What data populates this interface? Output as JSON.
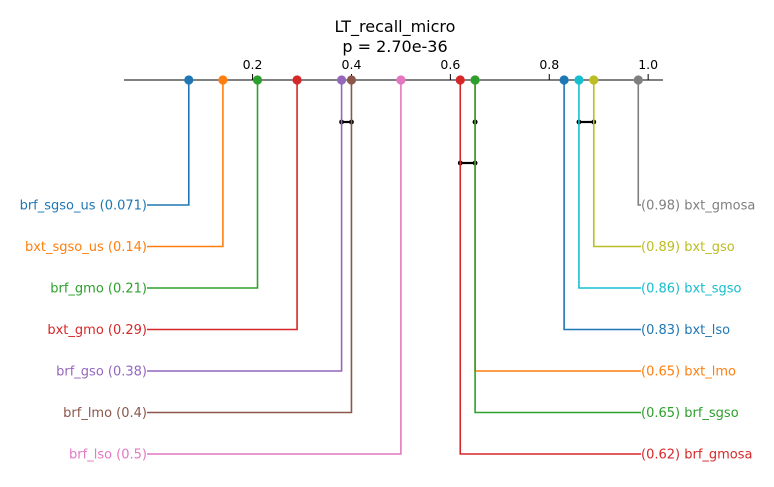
{
  "chart_data": {
    "type": "critical-difference-diagram",
    "title": "LT_recall_micro",
    "subtitle": "p = 2.70e-36",
    "xlim": [
      -0.06,
      1.03
    ],
    "ticks": [
      {
        "value": 0.2,
        "label": "0.2"
      },
      {
        "value": 0.4,
        "label": "0.4"
      },
      {
        "value": 0.6,
        "label": "0.6"
      },
      {
        "value": 0.8,
        "label": "0.8"
      },
      {
        "value": 1.0,
        "label": "1.0"
      }
    ],
    "entries": [
      {
        "name": "brf_sgso_us",
        "value": 0.071,
        "label": "brf_sgso_us (0.071)",
        "side": "left",
        "color": "#1f77b4"
      },
      {
        "name": "bxt_sgso_us",
        "value": 0.14,
        "label": "bxt_sgso_us (0.14)",
        "side": "left",
        "color": "#ff7f0e"
      },
      {
        "name": "brf_gmo",
        "value": 0.21,
        "label": "brf_gmo (0.21)",
        "side": "left",
        "color": "#2ca02c"
      },
      {
        "name": "bxt_gmo",
        "value": 0.29,
        "label": "bxt_gmo (0.29)",
        "side": "left",
        "color": "#d62728"
      },
      {
        "name": "brf_gso",
        "value": 0.38,
        "label": "brf_gso (0.38)",
        "side": "left",
        "color": "#9467bd"
      },
      {
        "name": "brf_lmo",
        "value": 0.4,
        "label": "brf_lmo (0.4)",
        "side": "left",
        "color": "#8c564b"
      },
      {
        "name": "brf_lso",
        "value": 0.5,
        "label": "brf_lso (0.5)",
        "side": "left",
        "color": "#e377c2"
      },
      {
        "name": "bxt_gmosa",
        "value": 0.98,
        "label": "(0.98) bxt_gmosa",
        "side": "right",
        "color": "#7f7f7f"
      },
      {
        "name": "bxt_gso",
        "value": 0.89,
        "label": "(0.89) bxt_gso",
        "side": "right",
        "color": "#bcbd22"
      },
      {
        "name": "bxt_sgso",
        "value": 0.86,
        "label": "(0.86) bxt_sgso",
        "side": "right",
        "color": "#17becf"
      },
      {
        "name": "bxt_lso",
        "value": 0.83,
        "label": "(0.83) bxt_lso",
        "side": "right",
        "color": "#1f77b4"
      },
      {
        "name": "bxt_lmo",
        "value": 0.65,
        "label": "(0.65) bxt_lmo",
        "side": "right",
        "color": "#ff7f0e"
      },
      {
        "name": "brf_sgso",
        "value": 0.65,
        "label": "(0.65) brf_sgso",
        "side": "right",
        "color": "#2ca02c"
      },
      {
        "name": "brf_gmosa",
        "value": 0.62,
        "label": "(0.62) brf_gmosa",
        "side": "right",
        "color": "#d62728"
      }
    ],
    "cliques": [
      {
        "from": 0.38,
        "to": 0.4
      },
      {
        "from": 0.65,
        "to": 0.65
      },
      {
        "from": 0.86,
        "to": 0.89
      },
      {
        "from": 0.62,
        "to": 0.65
      }
    ]
  }
}
